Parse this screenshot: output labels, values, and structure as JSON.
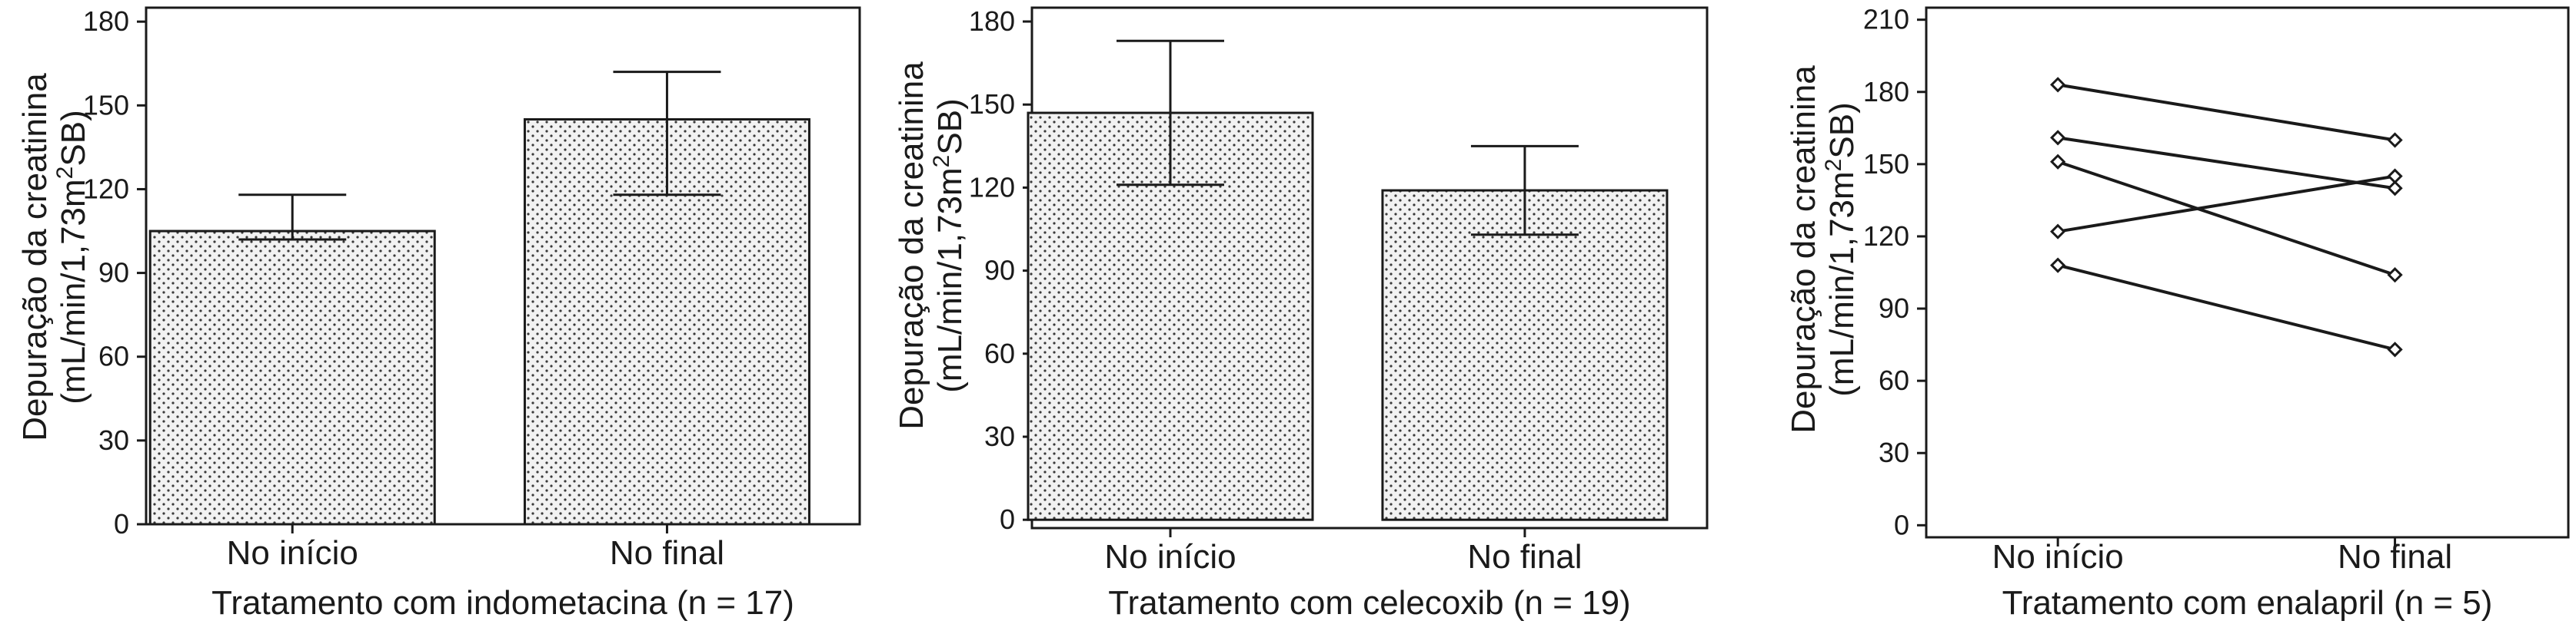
{
  "chart_data": [
    {
      "type": "bar",
      "categories": [
        "No início",
        "No final"
      ],
      "values": [
        105,
        145
      ],
      "error_upper": [
        118,
        162
      ],
      "error_lower": [
        102,
        118
      ],
      "xlabel": "Tratamento com indometacina (n = 17)",
      "ylabel_line1": "Depuração da creatinina",
      "ylabel_line2_pre": "(mL/min/1,73m",
      "ylabel_line2_sup": "2",
      "ylabel_line2_post": "SB)",
      "ylim": [
        0,
        185
      ],
      "yticks": [
        0,
        30,
        60,
        90,
        120,
        150,
        180
      ],
      "grid": false,
      "fill": "dotted"
    },
    {
      "type": "bar",
      "categories": [
        "No início",
        "No final"
      ],
      "values": [
        147,
        119
      ],
      "error_upper": [
        173,
        135
      ],
      "error_lower": [
        121,
        103
      ],
      "xlabel": "Tratamento com celecoxib (n = 19)",
      "ylabel_line1": "Depuração da creatinina",
      "ylabel_line2_pre": "(mL/min/1,73m",
      "ylabel_line2_sup": "2",
      "ylabel_line2_post": "SB)",
      "ylim": [
        -3,
        185
      ],
      "yticks": [
        0,
        30,
        60,
        90,
        120,
        150,
        180
      ],
      "grid": false,
      "fill": "dotted"
    },
    {
      "type": "line",
      "categories": [
        "No início",
        "No final"
      ],
      "series": [
        {
          "values": [
            183,
            160
          ]
        },
        {
          "values": [
            161,
            140
          ]
        },
        {
          "values": [
            151,
            104
          ]
        },
        {
          "values": [
            122,
            145
          ]
        },
        {
          "values": [
            108,
            73
          ]
        }
      ],
      "xlabel": "Tratamento com enalapril (n = 5)",
      "ylabel_line1": "Depuração da creatinina",
      "ylabel_line2_pre": "(mL/min/1,73m",
      "ylabel_line2_sup": "2",
      "ylabel_line2_post": "SB)",
      "ylim": [
        -5,
        215
      ],
      "yticks": [
        0,
        30,
        60,
        90,
        120,
        150,
        180,
        210
      ],
      "grid": false,
      "marker": "diamond"
    }
  ]
}
